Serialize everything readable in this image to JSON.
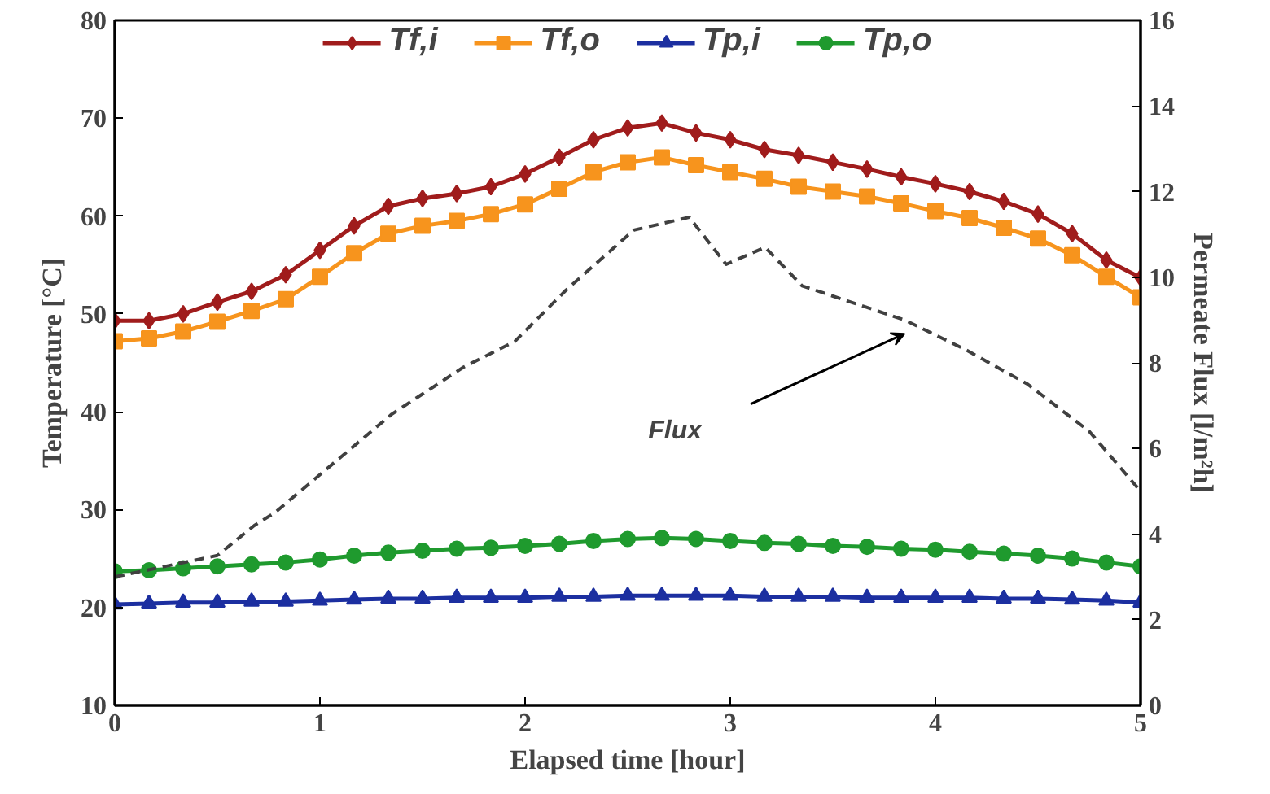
{
  "chart_data": {
    "type": "line",
    "xlabel": "Elapsed time [hour]",
    "ylabel": "Temperature [°C]",
    "y2label": "Permeate Flux [l/m²h]",
    "xlim": [
      0,
      5
    ],
    "xticks": [
      0,
      1,
      2,
      3,
      4,
      5
    ],
    "ylim": [
      10,
      80
    ],
    "yticks": [
      10,
      20,
      30,
      40,
      50,
      60,
      70,
      80
    ],
    "y2lim": [
      0,
      16
    ],
    "y2ticks": [
      0,
      2,
      4,
      6,
      8,
      10,
      12,
      14,
      16
    ],
    "x": [
      0,
      0.1667,
      0.3333,
      0.5,
      0.6667,
      0.8333,
      1,
      1.1667,
      1.3333,
      1.5,
      1.6667,
      1.8333,
      2,
      2.1667,
      2.3333,
      2.5,
      2.6667,
      2.8333,
      3,
      3.1667,
      3.3333,
      3.5,
      3.6667,
      3.8333,
      4,
      4.1667,
      4.3333,
      4.5,
      4.6667,
      4.8333,
      5
    ],
    "series": [
      {
        "name": "Tf,i",
        "color": "#a01c1c",
        "marker": "diamond",
        "values": [
          49.3,
          49.3,
          50,
          51.2,
          52.3,
          54,
          56.5,
          59,
          61,
          61.8,
          62.3,
          63,
          64.3,
          66,
          67.8,
          69,
          69.5,
          68.5,
          67.8,
          66.8,
          66.2,
          65.5,
          64.8,
          64,
          63.3,
          62.5,
          61.5,
          60.2,
          58.2,
          55.5,
          53.7
        ]
      },
      {
        "name": "Tf,o",
        "color": "#f7941d",
        "marker": "square",
        "values": [
          47.2,
          47.5,
          48.2,
          49.2,
          50.3,
          51.5,
          53.8,
          56.2,
          58.2,
          59,
          59.5,
          60.2,
          61.2,
          62.8,
          64.5,
          65.5,
          66,
          65.2,
          64.5,
          63.8,
          63,
          62.5,
          62,
          61.3,
          60.5,
          59.8,
          58.8,
          57.7,
          56,
          53.8,
          51.7
        ]
      },
      {
        "name": "Tp,i",
        "color": "#1c2fa0",
        "marker": "triangle",
        "values": [
          20.3,
          20.4,
          20.5,
          20.5,
          20.6,
          20.6,
          20.7,
          20.8,
          20.9,
          20.9,
          21,
          21,
          21,
          21.1,
          21.1,
          21.2,
          21.2,
          21.2,
          21.2,
          21.1,
          21.1,
          21.1,
          21,
          21,
          21,
          21,
          20.9,
          20.9,
          20.8,
          20.7,
          20.5
        ]
      },
      {
        "name": "Tp,o",
        "color": "#1f9a2e",
        "marker": "circle",
        "values": [
          23.7,
          23.8,
          24,
          24.2,
          24.4,
          24.6,
          24.9,
          25.3,
          25.6,
          25.8,
          26,
          26.1,
          26.3,
          26.5,
          26.8,
          27,
          27.1,
          27,
          26.8,
          26.6,
          26.5,
          26.3,
          26.2,
          26,
          25.9,
          25.7,
          25.5,
          25.3,
          25,
          24.6,
          24.2
        ]
      },
      {
        "color": "#404040",
        "axis": "y2",
        "line_style": "dashed",
        "marker": "none",
        "x": [
          0,
          0.5,
          0.68,
          0.78,
          1.35,
          1.7,
          1.95,
          2.2,
          2.53,
          2.8,
          2.98,
          3.17,
          3.35,
          3.6,
          3.85,
          4.15,
          4.45,
          4.75,
          5
        ],
        "values": [
          3.0,
          3.5,
          4.2,
          4.5,
          6.8,
          7.9,
          8.5,
          9.7,
          11.1,
          11.4,
          10.3,
          10.7,
          9.8,
          9.4,
          9.0,
          8.3,
          7.5,
          6.4,
          5.0
        ]
      }
    ],
    "annotations": [
      "Flux"
    ],
    "legend": "top",
    "grid": false
  }
}
